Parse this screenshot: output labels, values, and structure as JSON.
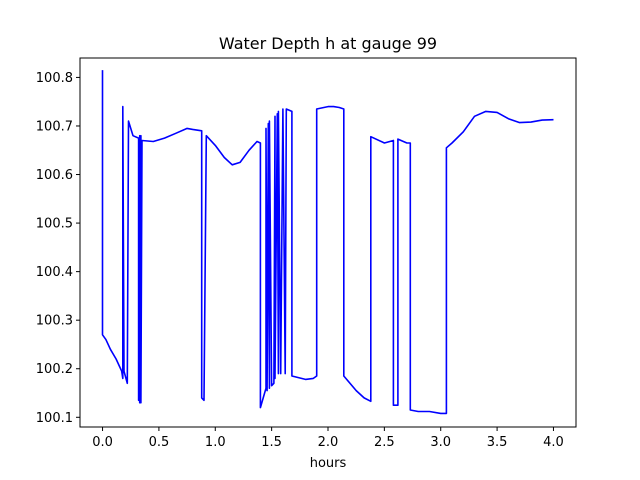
{
  "chart_data": {
    "type": "line",
    "title": "Water Depth h at gauge 99",
    "xlabel": "hours",
    "ylabel": "",
    "xlim": [
      -0.2,
      4.2
    ],
    "ylim": [
      100.08,
      100.84
    ],
    "xticks": [
      0.0,
      0.5,
      1.0,
      1.5,
      2.0,
      2.5,
      3.0,
      3.5,
      4.0
    ],
    "xtick_labels": [
      "0.0",
      "0.5",
      "1.0",
      "1.5",
      "2.0",
      "2.5",
      "3.0",
      "3.5",
      "4.0"
    ],
    "yticks": [
      100.1,
      100.2,
      100.3,
      100.4,
      100.5,
      100.6,
      100.7,
      100.8
    ],
    "ytick_labels": [
      "100.1",
      "100.2",
      "100.3",
      "100.4",
      "100.5",
      "100.6",
      "100.7",
      "100.8"
    ],
    "grid": false,
    "legend": "none",
    "series": [
      {
        "color": "#0000ff",
        "x": [
          0.0,
          0.0,
          0.0,
          0.03,
          0.07,
          0.12,
          0.17,
          0.18,
          0.18,
          0.19,
          0.19,
          0.22,
          0.23,
          0.23,
          0.27,
          0.32,
          0.32,
          0.33,
          0.33,
          0.34,
          0.34,
          0.35,
          0.35,
          0.45,
          0.55,
          0.65,
          0.75,
          0.8,
          0.88,
          0.88,
          0.9,
          0.92,
          0.92,
          1.0,
          1.08,
          1.15,
          1.22,
          1.3,
          1.37,
          1.4,
          1.4,
          1.45,
          1.45,
          1.46,
          1.47,
          1.48,
          1.48,
          1.5,
          1.52,
          1.53,
          1.53,
          1.55,
          1.56,
          1.56,
          1.58,
          1.6,
          1.6,
          1.62,
          1.63,
          1.63,
          1.68,
          1.68,
          1.8,
          1.87,
          1.9,
          1.9,
          2.0,
          2.05,
          2.1,
          2.14,
          2.14,
          2.25,
          2.32,
          2.38,
          2.38,
          2.5,
          2.58,
          2.58,
          2.62,
          2.62,
          2.7,
          2.73,
          2.73,
          2.8,
          2.9,
          3.0,
          3.05,
          3.05,
          3.1,
          3.2,
          3.3,
          3.4,
          3.5,
          3.6,
          3.7,
          3.8,
          3.9,
          4.0
        ],
        "y": [
          100.815,
          100.27,
          100.27,
          100.26,
          100.24,
          100.22,
          100.195,
          100.18,
          100.74,
          100.195,
          100.195,
          100.17,
          100.71,
          100.71,
          100.68,
          100.675,
          100.135,
          100.68,
          100.13,
          100.68,
          100.13,
          100.67,
          100.67,
          100.668,
          100.675,
          100.685,
          100.695,
          100.693,
          100.69,
          100.14,
          100.135,
          100.68,
          100.68,
          100.66,
          100.635,
          100.62,
          100.625,
          100.65,
          100.668,
          100.665,
          100.12,
          100.16,
          100.695,
          100.155,
          100.705,
          100.16,
          100.71,
          100.165,
          100.17,
          100.72,
          100.18,
          100.725,
          100.19,
          100.73,
          100.19,
          100.735,
          100.735,
          100.19,
          100.735,
          100.735,
          100.73,
          100.185,
          100.178,
          100.18,
          100.185,
          100.735,
          100.74,
          100.74,
          100.738,
          100.735,
          100.185,
          100.155,
          100.14,
          100.133,
          100.678,
          100.665,
          100.67,
          100.125,
          100.125,
          100.673,
          100.665,
          100.665,
          100.115,
          100.112,
          100.112,
          100.108,
          100.108,
          100.655,
          100.665,
          100.688,
          100.72,
          100.73,
          100.728,
          100.715,
          100.707,
          100.708,
          100.712,
          100.713
        ]
      }
    ]
  }
}
